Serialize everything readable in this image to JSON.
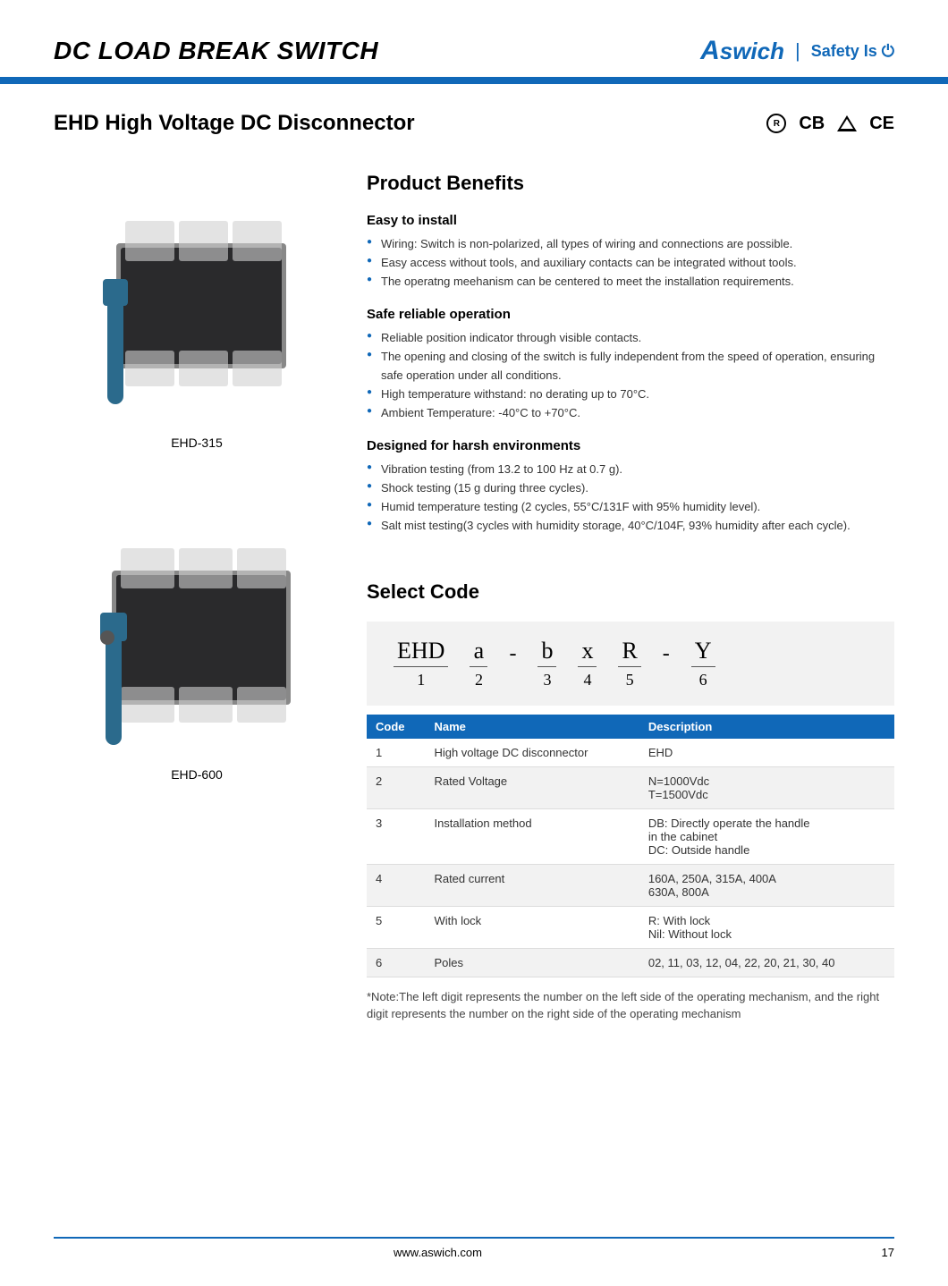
{
  "header": {
    "title": "DC LOAD BREAK SWITCH",
    "brand": "Aswich",
    "tagline": "Safety Is ⏻"
  },
  "sub": {
    "title": "EHD High Voltage DC Disconnector",
    "certs": [
      "RoHS",
      "CB",
      "△",
      "CE"
    ]
  },
  "products": [
    {
      "caption": "EHD-315"
    },
    {
      "caption": "EHD-600"
    }
  ],
  "benefits": {
    "title": "Product Benefits",
    "groups": [
      {
        "heading": "Easy to install",
        "items": [
          "Wiring: Switch is non-polarized, all types of wiring and connections are possible.",
          "Easy access without tools, and auxiliary contacts can be integrated without tools.",
          "The operatng meehanism can be centered to meet the installation requirements."
        ]
      },
      {
        "heading": "Safe reliable operation",
        "items": [
          "Reliable position indicator through visible contacts.",
          "The opening and closing of the switch is fully independent from the speed of operation, ensuring safe operation under all conditions.",
          "High temperature withstand: no derating up to 70°C.",
          "Ambient Temperature: -40°C to +70°C."
        ]
      },
      {
        "heading": "Designed for harsh environments",
        "items": [
          "Vibration testing (from 13.2 to 100 Hz at 0.7 g).",
          "Shock testing (15 g during three cycles).",
          "Humid temperature testing (2 cycles, 55°C/131F with 95% humidity level).",
          "Salt mist testing(3 cycles with humidity storage, 40°C/104F, 93% humidity after each cycle)."
        ]
      }
    ]
  },
  "selectcode": {
    "title": "Select Code",
    "pattern": [
      {
        "top": "EHD",
        "bot": "1"
      },
      {
        "top": "a",
        "bot": "2"
      },
      {
        "dash": "-"
      },
      {
        "top": "b",
        "bot": "3"
      },
      {
        "top": "x",
        "bot": "4"
      },
      {
        "top": "R",
        "bot": "5"
      },
      {
        "dash": "-"
      },
      {
        "top": "Y",
        "bot": "6"
      }
    ],
    "table": {
      "headers": [
        "Code",
        "Name",
        "Description"
      ],
      "rows": [
        {
          "code": "1",
          "name": "High voltage DC disconnector",
          "desc": "EHD",
          "alt": false
        },
        {
          "code": "2",
          "name": "Rated Voltage",
          "desc": "N=1000Vdc\nT=1500Vdc",
          "alt": true
        },
        {
          "code": "3",
          "name": "Installation method",
          "desc": "DB: Directly operate the handle\n       in the cabinet\nDC: Outside handle",
          "alt": false
        },
        {
          "code": "4",
          "name": "Rated current",
          "desc": "160A, 250A, 315A, 400A\n630A, 800A",
          "alt": true
        },
        {
          "code": "5",
          "name": "With lock",
          "desc": "R: With lock\nNil: Without lock",
          "alt": false
        },
        {
          "code": "6",
          "name": "Poles",
          "desc": "02, 11, 03, 12, 04, 22, 20, 21, 30, 40",
          "alt": true
        }
      ]
    },
    "note": "*Note:The left digit represents the number on the left side of the operating mechanism, and the right digit represents the number on the right side of the operating mechanism"
  },
  "footer": {
    "url": "www.aswich.com",
    "page": "17"
  },
  "colors": {
    "brand_blue": "#1068b8",
    "table_header_bg": "#1068b8",
    "table_alt_bg": "#f2f2f2",
    "codebox_bg": "#f2f2f2",
    "text": "#333333"
  }
}
